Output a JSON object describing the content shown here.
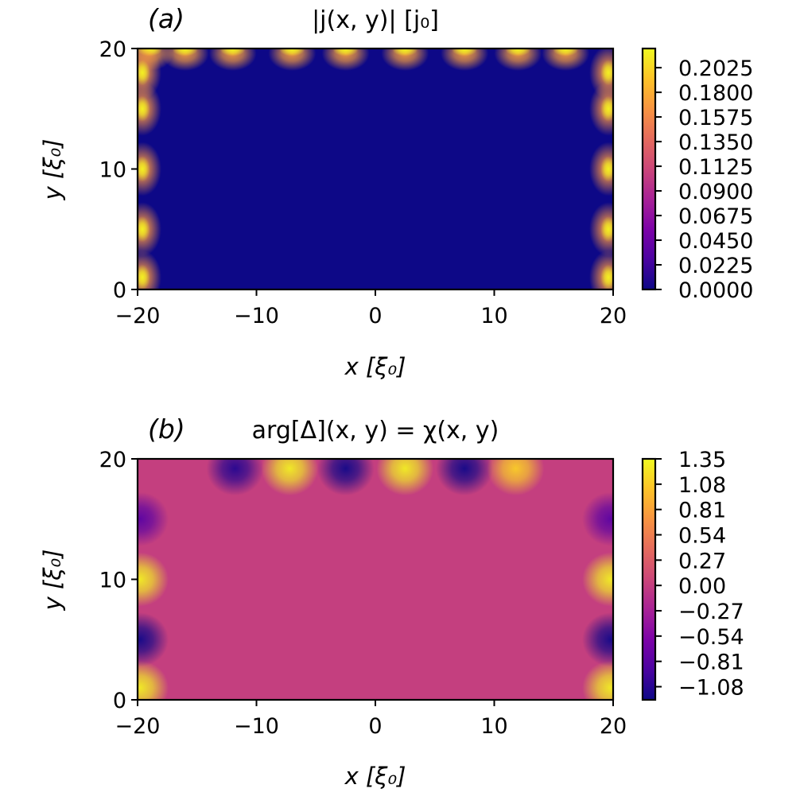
{
  "figure": {
    "panels": [
      {
        "panel_label": "(a)",
        "title": "|j(x, y)| [j₀]",
        "xlabel": "x [ξ₀]",
        "ylabel": "y [ξ₀]",
        "colormap": "plasma",
        "colorbar_label": "",
        "colorbar_ticks": [
          "0.2025",
          "0.1800",
          "0.1575",
          "0.1350",
          "0.1125",
          "0.0900",
          "0.0675",
          "0.0450",
          "0.0225",
          "0.0000"
        ]
      },
      {
        "panel_label": "(b)",
        "title": "arg[Δ](x, y) = χ(x, y)",
        "xlabel": "x [ξ₀]",
        "ylabel": "y [ξ₀]",
        "colormap": "plasma",
        "colorbar_label": "",
        "colorbar_ticks": [
          "1.35",
          "1.08",
          "0.81",
          "0.54",
          "0.27",
          "0.00",
          "−0.27",
          "−0.54",
          "−0.81",
          "−1.08"
        ]
      }
    ]
  },
  "chart_data": [
    {
      "type": "heatmap",
      "title": "|j(x, y)| [j₀]",
      "xlabel": "x [ξ₀]",
      "ylabel": "y [ξ₀]",
      "xlim": [
        -20,
        20
      ],
      "ylim": [
        0,
        20
      ],
      "xticks": [
        -20,
        -10,
        0,
        10,
        20
      ],
      "xtick_labels": [
        "−20",
        "−10",
        "0",
        "10",
        "20"
      ],
      "yticks": [
        0,
        10,
        20
      ],
      "ytick_labels": [
        "0",
        "10",
        "20"
      ],
      "zlim": [
        0,
        0.22
      ],
      "colorbar_ticks": [
        0.2025,
        0.18,
        0.1575,
        0.135,
        0.1125,
        0.09,
        0.0675,
        0.045,
        0.0225,
        0.0
      ],
      "colormap": "plasma",
      "features": {
        "top_edge_peaks_x": [
          -19,
          -16,
          -12,
          -7,
          -2.5,
          2.5,
          7.5,
          12,
          16
        ],
        "side_edge_peaks_y": [
          1,
          5,
          10,
          15,
          18
        ]
      }
    },
    {
      "type": "heatmap",
      "title": "arg[Δ](x, y) = χ(x, y)",
      "xlabel": "x [ξ₀]",
      "ylabel": "y [ξ₀]",
      "xlim": [
        -20,
        20
      ],
      "ylim": [
        0,
        20
      ],
      "xticks": [
        -20,
        -10,
        0,
        10,
        20
      ],
      "xtick_labels": [
        "−20",
        "−10",
        "0",
        "10",
        "20"
      ],
      "yticks": [
        0,
        10,
        20
      ],
      "ytick_labels": [
        "0",
        "10",
        "20"
      ],
      "zlim": [
        -1.22,
        1.35
      ],
      "colorbar_ticks": [
        1.35,
        1.08,
        0.81,
        0.54,
        0.27,
        0.0,
        -0.27,
        -0.54,
        -0.81,
        -1.08
      ],
      "colormap": "plasma",
      "features": {
        "top_edge_spots": [
          {
            "x": -11.8,
            "y": 19.2,
            "value": -1.1
          },
          {
            "x": -7.2,
            "y": 19.2,
            "value": 1.3
          },
          {
            "x": -2.5,
            "y": 19.2,
            "value": -1.2
          },
          {
            "x": 2.5,
            "y": 19.2,
            "value": 1.3
          },
          {
            "x": 7.5,
            "y": 19.2,
            "value": -1.2
          },
          {
            "x": 11.8,
            "y": 19.2,
            "value": 1.1
          }
        ],
        "side_edge_spots": [
          {
            "x": -19.8,
            "y": 1,
            "value": 1.3
          },
          {
            "x": -19.8,
            "y": 5,
            "value": -1.2
          },
          {
            "x": -19.8,
            "y": 10,
            "value": 1.3
          },
          {
            "x": -19.8,
            "y": 15,
            "value": -0.8
          },
          {
            "x": 19.8,
            "y": 1,
            "value": 1.3
          },
          {
            "x": 19.8,
            "y": 5,
            "value": -1.2
          },
          {
            "x": 19.8,
            "y": 10,
            "value": 1.3
          },
          {
            "x": 19.8,
            "y": 15,
            "value": -0.8
          }
        ]
      }
    }
  ]
}
